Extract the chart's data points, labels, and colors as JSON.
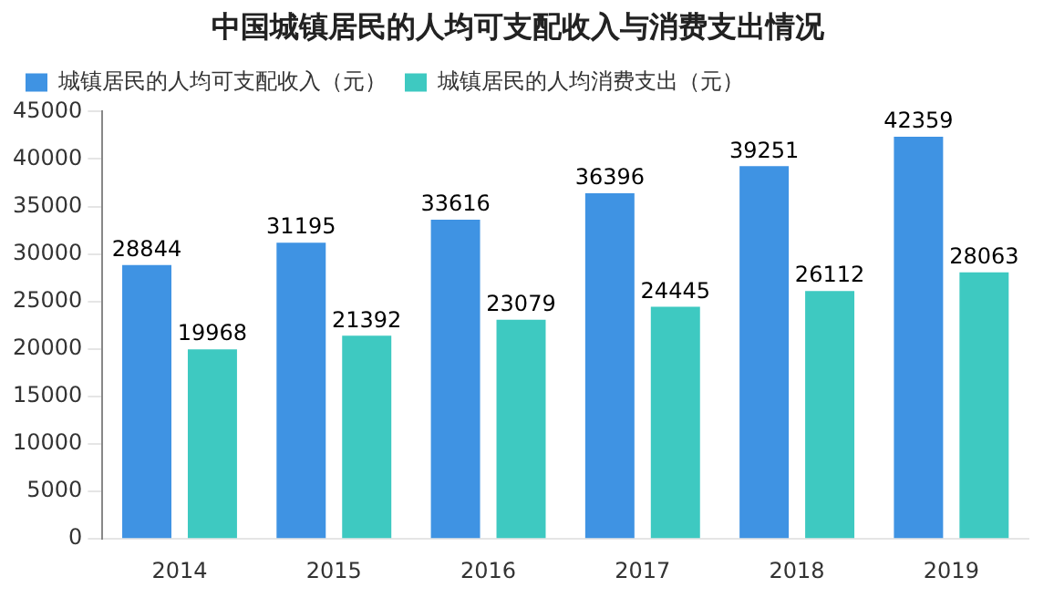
{
  "chart_data": {
    "type": "bar",
    "title": "中国城镇居民的人均可支配收入与消费支出情况",
    "categories": [
      "2014",
      "2015",
      "2016",
      "2017",
      "2018",
      "2019"
    ],
    "series": [
      {
        "name": "城镇居民的人均可支配收入（元）",
        "color": "#3f93e3",
        "values": [
          28844,
          31195,
          33616,
          36396,
          39251,
          42359
        ]
      },
      {
        "name": "城镇居民的人均消费支出（元）",
        "color": "#3ec9c1",
        "values": [
          19968,
          21392,
          23079,
          24445,
          26112,
          28063
        ]
      }
    ],
    "ylim": [
      0,
      45000
    ],
    "yticks": [
      0,
      5000,
      10000,
      15000,
      20000,
      25000,
      30000,
      35000,
      40000,
      45000
    ],
    "grid": false,
    "legend": "top",
    "data_labels": true
  }
}
